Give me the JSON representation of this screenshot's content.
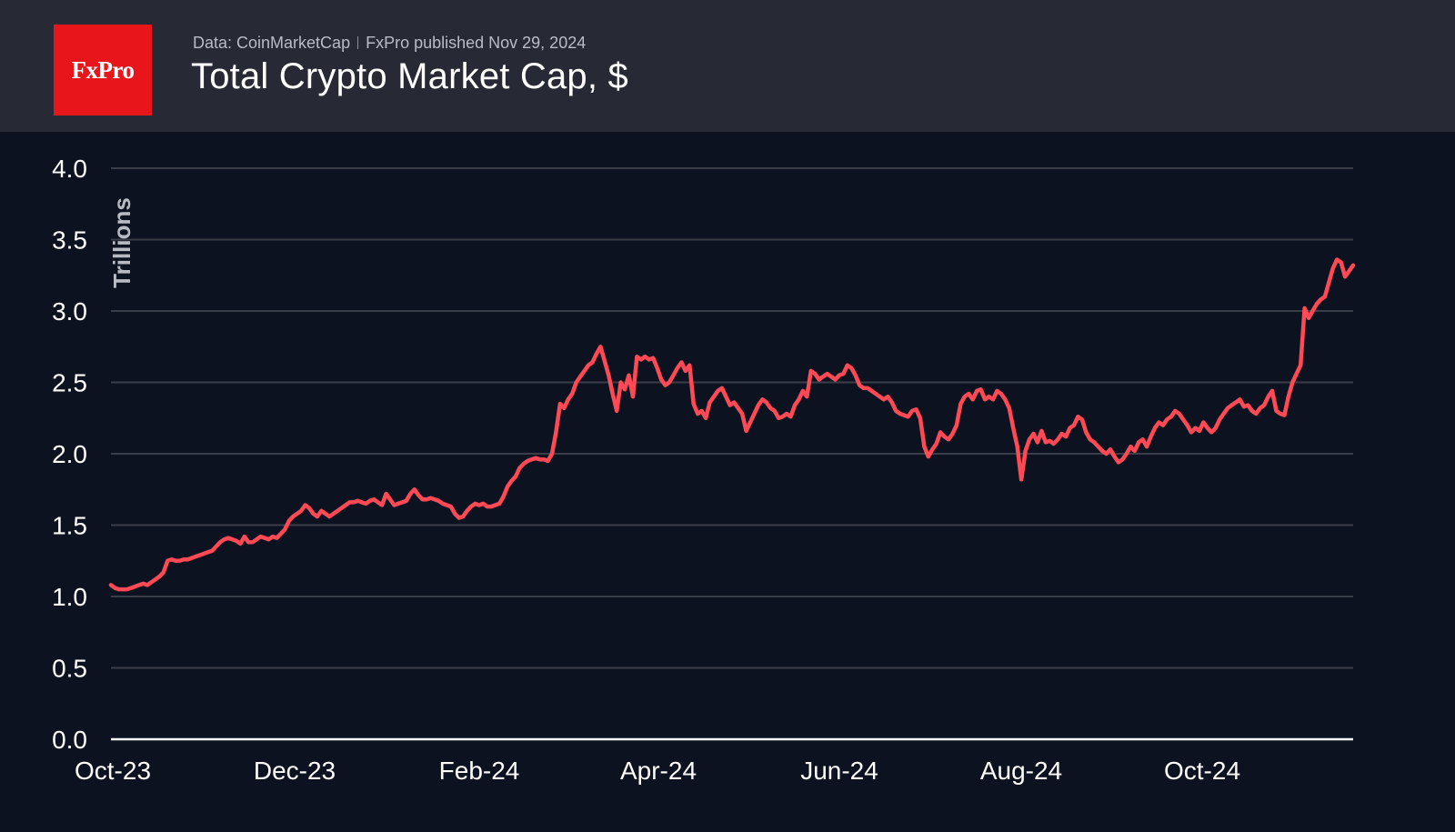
{
  "header": {
    "logo_text": "FxPro",
    "source_text": "Data: CoinMarketCap",
    "published_text": "FxPro published Nov 29, 2024",
    "title": "Total Crypto Market Cap, $"
  },
  "colors": {
    "background": "#0d1220",
    "header_background": "#272a35",
    "logo_red": "#e8151b",
    "line": "#ff4a55",
    "grid": "#3a3e49",
    "axis": "#ffffff"
  },
  "chart_data": {
    "type": "line",
    "title": "Total Crypto Market Cap, $",
    "xlabel": "",
    "ylabel": "Trillions",
    "ylim": [
      0,
      4.0
    ],
    "yticks": [
      "0.0",
      "0.5",
      "1.0",
      "1.5",
      "2.0",
      "2.5",
      "3.0",
      "3.5",
      "4.0"
    ],
    "xticks": [
      "Oct-23",
      "Dec-23",
      "Feb-24",
      "Apr-24",
      "Jun-24",
      "Aug-24",
      "Oct-24"
    ],
    "grid": true,
    "legend": "none",
    "series": [
      {
        "values": [
          1.08,
          1.06,
          1.05,
          1.05,
          1.05,
          1.06,
          1.07,
          1.08,
          1.09,
          1.08,
          1.1,
          1.12,
          1.14,
          1.17,
          1.25,
          1.26,
          1.25,
          1.25,
          1.26,
          1.26,
          1.27,
          1.28,
          1.29,
          1.3,
          1.31,
          1.32,
          1.35,
          1.38,
          1.4,
          1.41,
          1.4,
          1.39,
          1.37,
          1.42,
          1.38,
          1.38,
          1.4,
          1.42,
          1.41,
          1.4,
          1.42,
          1.41,
          1.44,
          1.47,
          1.53,
          1.56,
          1.58,
          1.6,
          1.64,
          1.62,
          1.58,
          1.56,
          1.6,
          1.58,
          1.56,
          1.58,
          1.6,
          1.62,
          1.64,
          1.66,
          1.66,
          1.67,
          1.66,
          1.65,
          1.67,
          1.68,
          1.66,
          1.64,
          1.72,
          1.68,
          1.64,
          1.65,
          1.66,
          1.67,
          1.72,
          1.75,
          1.71,
          1.68,
          1.68,
          1.69,
          1.68,
          1.67,
          1.65,
          1.64,
          1.63,
          1.58,
          1.55,
          1.56,
          1.6,
          1.63,
          1.65,
          1.64,
          1.65,
          1.63,
          1.63,
          1.64,
          1.65,
          1.7,
          1.77,
          1.81,
          1.84,
          1.9,
          1.93,
          1.95,
          1.96,
          1.97,
          1.96,
          1.96,
          1.95,
          2.0,
          2.15,
          2.35,
          2.32,
          2.38,
          2.42,
          2.5,
          2.54,
          2.58,
          2.62,
          2.64,
          2.7,
          2.75,
          2.65,
          2.55,
          2.42,
          2.3,
          2.5,
          2.45,
          2.55,
          2.4,
          2.68,
          2.66,
          2.68,
          2.66,
          2.67,
          2.6,
          2.52,
          2.48,
          2.5,
          2.55,
          2.6,
          2.64,
          2.58,
          2.62,
          2.35,
          2.28,
          2.3,
          2.25,
          2.36,
          2.4,
          2.44,
          2.46,
          2.4,
          2.34,
          2.36,
          2.32,
          2.28,
          2.16,
          2.22,
          2.28,
          2.34,
          2.38,
          2.36,
          2.32,
          2.3,
          2.25,
          2.26,
          2.28,
          2.26,
          2.34,
          2.38,
          2.44,
          2.4,
          2.58,
          2.56,
          2.52,
          2.54,
          2.56,
          2.54,
          2.52,
          2.55,
          2.56,
          2.62,
          2.6,
          2.55,
          2.48,
          2.46,
          2.46,
          2.44,
          2.42,
          2.4,
          2.38,
          2.4,
          2.36,
          2.3,
          2.28,
          2.27,
          2.26,
          2.3,
          2.31,
          2.25,
          2.05,
          1.98,
          2.03,
          2.07,
          2.15,
          2.12,
          2.1,
          2.14,
          2.2,
          2.35,
          2.4,
          2.42,
          2.38,
          2.44,
          2.45,
          2.38,
          2.4,
          2.38,
          2.44,
          2.42,
          2.38,
          2.32,
          2.18,
          2.05,
          1.82,
          2.02,
          2.1,
          2.14,
          2.08,
          2.16,
          2.08,
          2.09,
          2.07,
          2.1,
          2.14,
          2.12,
          2.18,
          2.2,
          2.26,
          2.24,
          2.15,
          2.1,
          2.08,
          2.05,
          2.02,
          2.0,
          2.03,
          1.98,
          1.94,
          1.96,
          2.0,
          2.05,
          2.02,
          2.08,
          2.1,
          2.05,
          2.12,
          2.18,
          2.22,
          2.2,
          2.24,
          2.26,
          2.3,
          2.28,
          2.24,
          2.2,
          2.15,
          2.18,
          2.16,
          2.22,
          2.18,
          2.15,
          2.18,
          2.24,
          2.28,
          2.32,
          2.34,
          2.36,
          2.38,
          2.33,
          2.34,
          2.3,
          2.28,
          2.32,
          2.34,
          2.4,
          2.44,
          2.3,
          2.28,
          2.27,
          2.4,
          2.5,
          2.56,
          2.62,
          3.02,
          2.95,
          3.0,
          3.05,
          3.08,
          3.1,
          3.2,
          3.3,
          3.36,
          3.34,
          3.24,
          3.28,
          3.32
        ]
      }
    ]
  }
}
